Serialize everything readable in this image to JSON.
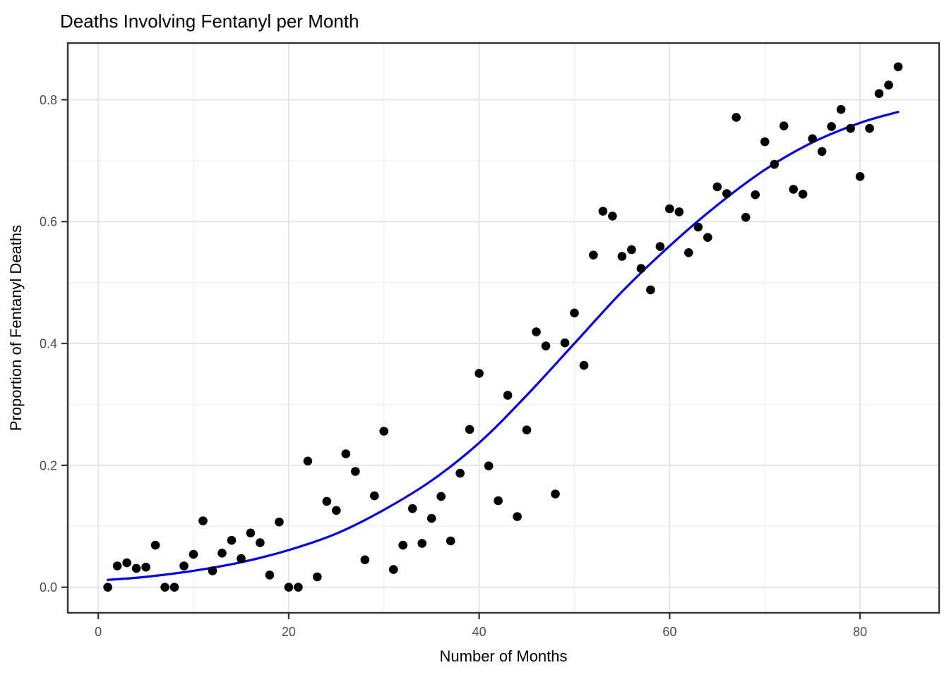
{
  "page": {
    "background": "#FFFFFF"
  },
  "chart_data": {
    "type": "scatter",
    "title": "Deaths Involving Fentanyl per Month",
    "xlabel": "Number of Months",
    "ylabel": "Proportion of Fentanyl Deaths",
    "x_ticks": [
      0,
      20,
      40,
      60,
      80
    ],
    "x_tick_labels": [
      "0",
      "20",
      "40",
      "60",
      "80"
    ],
    "x_minor_ticks": [
      10,
      30,
      50,
      70
    ],
    "y_ticks": [
      0.0,
      0.2,
      0.4,
      0.6,
      0.8
    ],
    "y_tick_labels": [
      "0.0",
      "0.2",
      "0.4",
      "0.6",
      "0.8"
    ],
    "y_minor_ticks": [
      0.1,
      0.3,
      0.5,
      0.7
    ],
    "xlim": [
      -3.2,
      88.3
    ],
    "ylim": [
      -0.042,
      0.893
    ],
    "grid": true,
    "legend_position": "none",
    "colors": {
      "point": "#000000",
      "trend": "#0000E0",
      "grid_major": "#E6E6E6",
      "grid_minor": "#F2F2F2",
      "panel_border": "#333333",
      "tick_mark": "#333333",
      "tick_label": "#4D4D4D",
      "text": "#000000",
      "panel_background": "#FFFFFF"
    },
    "series": [
      {
        "name": "monthly-proportion-points",
        "type": "scatter",
        "x": [
          1,
          2,
          3,
          4,
          5,
          6,
          7,
          8,
          9,
          10,
          11,
          12,
          13,
          14,
          15,
          16,
          17,
          18,
          19,
          20,
          21,
          22,
          23,
          24,
          25,
          26,
          27,
          28,
          29,
          30,
          31,
          32,
          33,
          34,
          35,
          36,
          37,
          38,
          39,
          40,
          41,
          42,
          43,
          44,
          45,
          46,
          47,
          48,
          49,
          50,
          51,
          52,
          53,
          54,
          55,
          56,
          57,
          58,
          59,
          60,
          61,
          62,
          63,
          64,
          65,
          66,
          67,
          68,
          69,
          70,
          71,
          72,
          73,
          74,
          75,
          76,
          77,
          78,
          79,
          80,
          81,
          82,
          83,
          84
        ],
        "y": [
          0.0,
          0.035,
          0.04,
          0.031,
          0.033,
          0.069,
          0.0,
          0.0,
          0.035,
          0.054,
          0.109,
          0.027,
          0.056,
          0.077,
          0.047,
          0.089,
          0.073,
          0.02,
          0.107,
          0.0,
          0.0,
          0.207,
          0.017,
          0.141,
          0.126,
          0.219,
          0.19,
          0.045,
          0.15,
          0.256,
          0.029,
          0.069,
          0.129,
          0.072,
          0.113,
          0.149,
          0.076,
          0.187,
          0.259,
          0.351,
          0.199,
          0.142,
          0.315,
          0.116,
          0.258,
          0.419,
          0.396,
          0.153,
          0.401,
          0.45,
          0.364,
          0.545,
          0.617,
          0.609,
          0.543,
          0.554,
          0.523,
          0.488,
          0.559,
          0.621,
          0.616,
          0.549,
          0.591,
          0.574,
          0.657,
          0.646,
          0.771,
          0.607,
          0.644,
          0.731,
          0.694,
          0.757,
          0.653,
          0.645,
          0.736,
          0.715,
          0.756,
          0.784,
          0.753,
          0.674,
          0.753,
          0.81,
          0.824,
          0.854
        ]
      },
      {
        "name": "logistic-smooth-fit",
        "type": "line",
        "x": [
          1,
          5,
          10,
          15,
          20,
          25,
          30,
          35,
          40,
          45,
          50,
          55,
          60,
          65,
          70,
          75,
          80,
          84
        ],
        "y": [
          0.012,
          0.017,
          0.027,
          0.041,
          0.061,
          0.088,
          0.127,
          0.175,
          0.237,
          0.315,
          0.4,
          0.485,
          0.56,
          0.627,
          0.685,
          0.73,
          0.762,
          0.78
        ]
      }
    ]
  }
}
